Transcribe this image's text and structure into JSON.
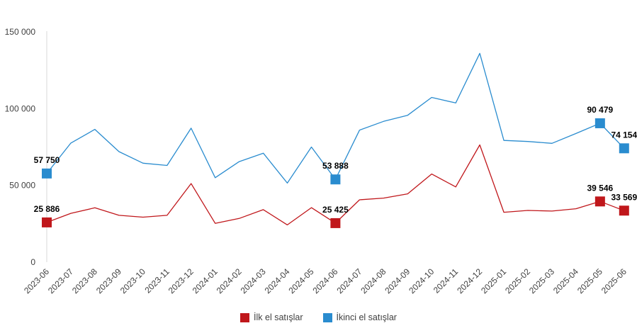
{
  "chart_data": {
    "type": "line",
    "title": "",
    "xlabel": "",
    "ylabel": "",
    "ylim": [
      0,
      150000
    ],
    "y_ticks": [
      "0",
      "50 000",
      "100 000",
      "150 000"
    ],
    "grid": false,
    "legend_position": "bottom",
    "categories": [
      "2023-06",
      "2023-07",
      "2023-08",
      "2023-09",
      "2023-10",
      "2023-11",
      "2023-12",
      "2024-01",
      "2024-02",
      "2024-03",
      "2024-04",
      "2024-05",
      "2024-06",
      "2024-07",
      "2024-08",
      "2024-09",
      "2024-10",
      "2024-11",
      "2024-12",
      "2025-01",
      "2025-02",
      "2025-03",
      "2025-04",
      "2025-05",
      "2025-06"
    ],
    "series": [
      {
        "name": "İlk el satışlar",
        "color": "#c0171b",
        "values": [
          25886,
          31800,
          35400,
          30500,
          29300,
          30500,
          51200,
          25300,
          28500,
          34200,
          24300,
          35500,
          25425,
          40600,
          41700,
          44500,
          57400,
          49000,
          76400,
          32500,
          33700,
          33300,
          34800,
          39546,
          33569
        ],
        "labels": [
          {
            "index": 0,
            "text": "25 886"
          },
          {
            "index": 12,
            "text": "25 425"
          },
          {
            "index": 23,
            "text": "39 546"
          },
          {
            "index": 24,
            "text": "33 569"
          }
        ]
      },
      {
        "name": "İkinci el satışlar",
        "color": "#2a8ccf",
        "values": [
          57750,
          77600,
          86500,
          72000,
          64500,
          63000,
          87300,
          55000,
          65500,
          71000,
          51500,
          75000,
          53888,
          86000,
          91700,
          95700,
          107300,
          103700,
          136000,
          79300,
          78600,
          77400,
          83800,
          90479,
          74154
        ],
        "labels": [
          {
            "index": 0,
            "text": "57 750"
          },
          {
            "index": 12,
            "text": "53 888"
          },
          {
            "index": 23,
            "text": "90 479"
          },
          {
            "index": 24,
            "text": "74 154"
          }
        ]
      }
    ]
  }
}
